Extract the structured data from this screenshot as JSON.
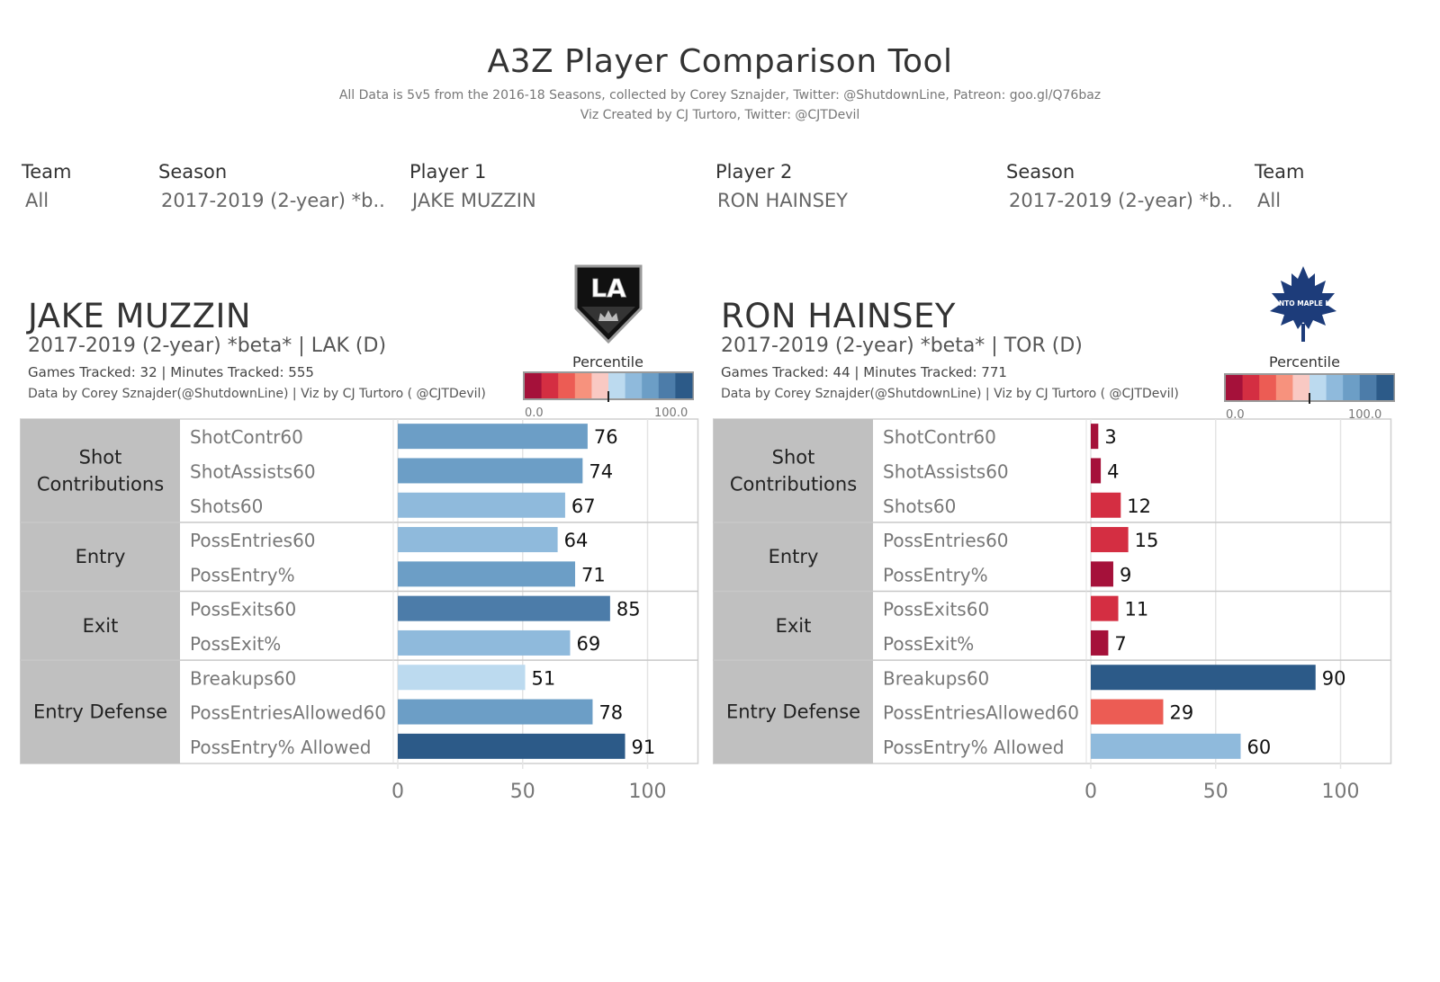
{
  "header": {
    "title": "A3Z Player Comparison Tool",
    "subtitle_1": "All Data is 5v5 from the 2016-18 Seasons, collected by Corey Sznajder, Twitter: @ShutdownLine, Patreon: goo.gl/Q76baz",
    "subtitle_2": "Viz Created by CJ Turtoro, Twitter: @CJTDevil"
  },
  "filters": [
    {
      "label": "Team",
      "value": "All"
    },
    {
      "label": "Season",
      "value": "2017-2019 (2-year) *b.."
    },
    {
      "label": "Player 1",
      "value": "JAKE MUZZIN"
    },
    {
      "label": "Player 2",
      "value": "RON HAINSEY"
    },
    {
      "label": "Season",
      "value": "2017-2019 (2-year) *b.."
    },
    {
      "label": "Team",
      "value": "All"
    }
  ],
  "colors": {
    "percentile_scale": [
      "#a5113a",
      "#d42e42",
      "#ec5c54",
      "#f7927d",
      "#f9c9c3",
      "#bcdaef",
      "#8fbadc",
      "#6c9ec6",
      "#4c7ca9",
      "#2c5a88"
    ],
    "panel_gray": "#c0c0c0"
  },
  "players": [
    {
      "name": "JAKE MUZZIN",
      "season_line": "2017-2019 (2-year) *beta* | LAK (D)",
      "games_line": "Games Tracked: 32  | Minutes Tracked: 555",
      "credit_line": "Data by Corey Sznajder(@ShutdownLine) | Viz by CJ Turtoro ( @CJTDevil)",
      "logo_text": "LA",
      "logo_icon": "la-kings-logo-icon",
      "percentile_title": "Percentile",
      "percentile_min": "0.0",
      "percentile_max": "100.0",
      "percentile_marker": 50
    },
    {
      "name": "RON HAINSEY",
      "season_line": "2017-2019 (2-year) *beta* | TOR (D)",
      "games_line": "Games Tracked: 44  | Minutes Tracked: 771",
      "credit_line": "Data by Corey Sznajder(@ShutdownLine) | Viz by CJ Turtoro ( @CJTDevil)",
      "logo_text": "TORONTO MAPLE LEAFS",
      "logo_icon": "maple-leafs-logo-icon",
      "percentile_title": "Percentile",
      "percentile_min": "0.0",
      "percentile_max": "100.0",
      "percentile_marker": 50
    }
  ],
  "chart_data": [
    {
      "type": "bar",
      "orientation": "horizontal",
      "player": "JAKE MUZZIN",
      "groups": [
        {
          "name": "Shot Contributions",
          "metrics": [
            "ShotContr60",
            "ShotAssists60",
            "Shots60"
          ]
        },
        {
          "name": "Entry",
          "metrics": [
            "PossEntries60",
            "PossEntry%"
          ]
        },
        {
          "name": "Exit",
          "metrics": [
            "PossExits60",
            "PossExit%"
          ]
        },
        {
          "name": "Entry Defense",
          "metrics": [
            "Breakups60",
            "PossEntriesAllowed60",
            "PossEntry% Allowed"
          ]
        }
      ],
      "categories": [
        "ShotContr60",
        "ShotAssists60",
        "Shots60",
        "PossEntries60",
        "PossEntry%",
        "PossExits60",
        "PossExit%",
        "Breakups60",
        "PossEntriesAllowed60",
        "PossEntry% Allowed"
      ],
      "values": [
        76,
        74,
        67,
        64,
        71,
        85,
        69,
        51,
        78,
        91
      ],
      "xlim": [
        0,
        120
      ],
      "x_ticks": [
        0,
        50,
        100
      ],
      "color_by": "percentile",
      "grid": true
    },
    {
      "type": "bar",
      "orientation": "horizontal",
      "player": "RON HAINSEY",
      "groups": [
        {
          "name": "Shot Contributions",
          "metrics": [
            "ShotContr60",
            "ShotAssists60",
            "Shots60"
          ]
        },
        {
          "name": "Entry",
          "metrics": [
            "PossEntries60",
            "PossEntry%"
          ]
        },
        {
          "name": "Exit",
          "metrics": [
            "PossExits60",
            "PossExit%"
          ]
        },
        {
          "name": "Entry Defense",
          "metrics": [
            "Breakups60",
            "PossEntriesAllowed60",
            "PossEntry% Allowed"
          ]
        }
      ],
      "categories": [
        "ShotContr60",
        "ShotAssists60",
        "Shots60",
        "PossEntries60",
        "PossEntry%",
        "PossExits60",
        "PossExit%",
        "Breakups60",
        "PossEntriesAllowed60",
        "PossEntry% Allowed"
      ],
      "values": [
        3,
        4,
        12,
        15,
        9,
        11,
        7,
        90,
        29,
        60
      ],
      "xlim": [
        0,
        120
      ],
      "x_ticks": [
        0,
        50,
        100
      ],
      "color_by": "percentile",
      "grid": true
    }
  ]
}
